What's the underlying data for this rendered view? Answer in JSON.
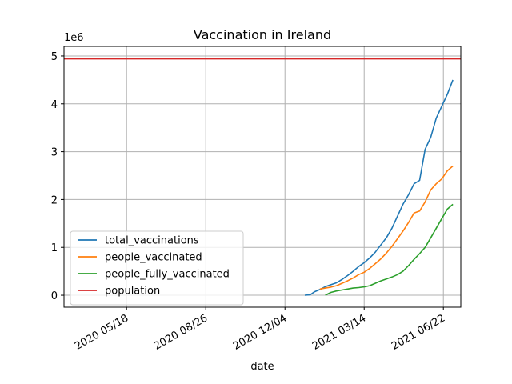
{
  "chart_data": {
    "type": "line",
    "title": "Vaccination in Ireland",
    "xlabel": "date",
    "ylabel": "",
    "y_scale_label": "1e6",
    "y_scale": 1000000,
    "xlim": [
      "2020-02-29",
      "2021-07-14"
    ],
    "ylim": [
      -250000,
      5200000
    ],
    "x_ticks": [
      {
        "date": "2020-05-18",
        "label": "2020 05/18"
      },
      {
        "date": "2020-08-26",
        "label": "2020 08/26"
      },
      {
        "date": "2020-12-04",
        "label": "2020 12/04"
      },
      {
        "date": "2021-03-14",
        "label": "2021 03/14"
      },
      {
        "date": "2021-06-22",
        "label": "2021 06/22"
      }
    ],
    "y_ticks": [
      0,
      1000000,
      2000000,
      3000000,
      4000000,
      5000000
    ],
    "y_tick_labels": [
      "0",
      "1",
      "2",
      "3",
      "4",
      "5"
    ],
    "grid": true,
    "legend_position": "lower-left",
    "series": [
      {
        "name": "total_vaccinations",
        "color": "#1f77b4",
        "points": [
          [
            "2020-12-29",
            0
          ],
          [
            "2021-01-05",
            10000
          ],
          [
            "2021-01-10",
            70000
          ],
          [
            "2021-01-17",
            120000
          ],
          [
            "2021-01-24",
            180000
          ],
          [
            "2021-01-31",
            220000
          ],
          [
            "2021-02-07",
            260000
          ],
          [
            "2021-02-14",
            330000
          ],
          [
            "2021-02-21",
            410000
          ],
          [
            "2021-02-28",
            500000
          ],
          [
            "2021-03-07",
            600000
          ],
          [
            "2021-03-14",
            680000
          ],
          [
            "2021-03-21",
            780000
          ],
          [
            "2021-03-28",
            900000
          ],
          [
            "2021-04-04",
            1050000
          ],
          [
            "2021-04-11",
            1200000
          ],
          [
            "2021-04-18",
            1400000
          ],
          [
            "2021-04-25",
            1650000
          ],
          [
            "2021-05-02",
            1900000
          ],
          [
            "2021-05-09",
            2100000
          ],
          [
            "2021-05-16",
            2330000
          ],
          [
            "2021-05-23",
            2400000
          ],
          [
            "2021-05-30",
            3050000
          ],
          [
            "2021-06-06",
            3300000
          ],
          [
            "2021-06-13",
            3700000
          ],
          [
            "2021-06-20",
            3950000
          ],
          [
            "2021-06-27",
            4200000
          ],
          [
            "2021-07-04",
            4500000
          ]
        ]
      },
      {
        "name": "people_vaccinated",
        "color": "#ff7f0e",
        "points": [
          [
            "2021-01-17",
            130000
          ],
          [
            "2021-01-24",
            150000
          ],
          [
            "2021-01-31",
            170000
          ],
          [
            "2021-02-07",
            200000
          ],
          [
            "2021-02-14",
            250000
          ],
          [
            "2021-02-21",
            300000
          ],
          [
            "2021-02-28",
            360000
          ],
          [
            "2021-03-07",
            430000
          ],
          [
            "2021-03-14",
            480000
          ],
          [
            "2021-03-21",
            560000
          ],
          [
            "2021-03-28",
            660000
          ],
          [
            "2021-04-04",
            760000
          ],
          [
            "2021-04-11",
            880000
          ],
          [
            "2021-04-18",
            1020000
          ],
          [
            "2021-04-25",
            1180000
          ],
          [
            "2021-05-02",
            1340000
          ],
          [
            "2021-05-09",
            1520000
          ],
          [
            "2021-05-16",
            1720000
          ],
          [
            "2021-05-23",
            1760000
          ],
          [
            "2021-05-30",
            1950000
          ],
          [
            "2021-06-06",
            2200000
          ],
          [
            "2021-06-13",
            2330000
          ],
          [
            "2021-06-20",
            2430000
          ],
          [
            "2021-06-27",
            2600000
          ],
          [
            "2021-07-04",
            2700000
          ]
        ]
      },
      {
        "name": "people_fully_vaccinated",
        "color": "#2ca02c",
        "points": [
          [
            "2021-01-24",
            0
          ],
          [
            "2021-01-31",
            60000
          ],
          [
            "2021-02-07",
            90000
          ],
          [
            "2021-02-14",
            110000
          ],
          [
            "2021-02-21",
            130000
          ],
          [
            "2021-02-28",
            150000
          ],
          [
            "2021-03-07",
            160000
          ],
          [
            "2021-03-14",
            175000
          ],
          [
            "2021-03-21",
            200000
          ],
          [
            "2021-03-28",
            250000
          ],
          [
            "2021-04-04",
            300000
          ],
          [
            "2021-04-11",
            340000
          ],
          [
            "2021-04-18",
            380000
          ],
          [
            "2021-04-25",
            430000
          ],
          [
            "2021-05-02",
            500000
          ],
          [
            "2021-05-09",
            620000
          ],
          [
            "2021-05-16",
            750000
          ],
          [
            "2021-05-23",
            870000
          ],
          [
            "2021-05-30",
            1000000
          ],
          [
            "2021-06-06",
            1200000
          ],
          [
            "2021-06-13",
            1400000
          ],
          [
            "2021-06-20",
            1600000
          ],
          [
            "2021-06-27",
            1800000
          ],
          [
            "2021-07-04",
            1900000
          ]
        ]
      },
      {
        "name": "population",
        "color": "#d62728",
        "points": [
          [
            "2020-02-29",
            4940000
          ],
          [
            "2021-07-14",
            4940000
          ]
        ]
      }
    ]
  }
}
